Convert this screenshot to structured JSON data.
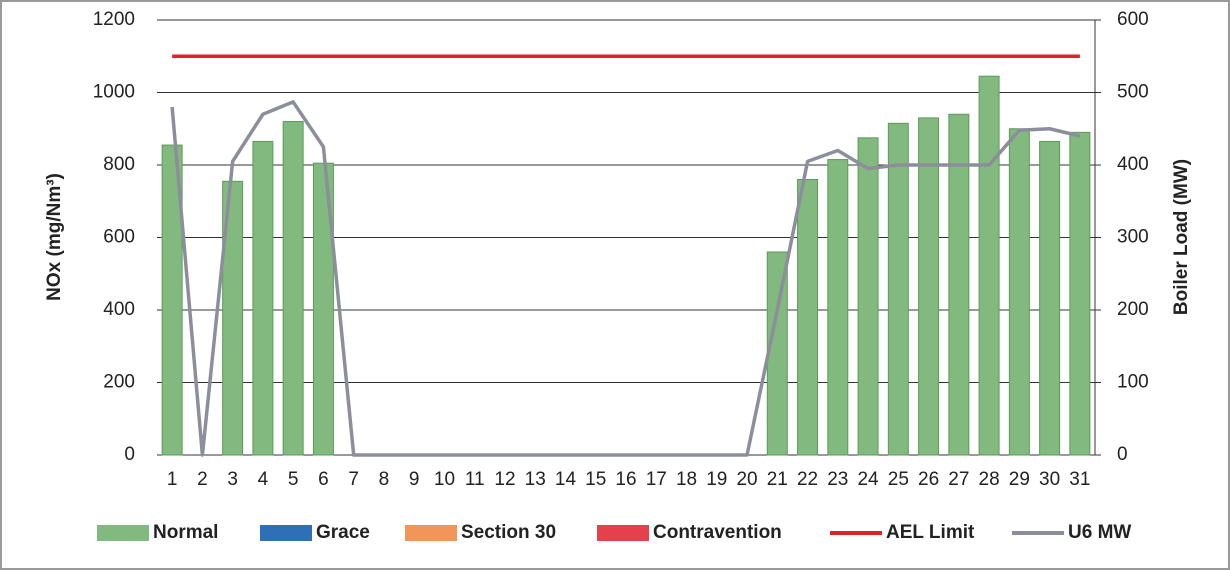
{
  "chart_data": {
    "type": "bar",
    "categories": [
      "1",
      "2",
      "3",
      "4",
      "5",
      "6",
      "7",
      "8",
      "9",
      "10",
      "11",
      "12",
      "13",
      "14",
      "15",
      "16",
      "17",
      "18",
      "19",
      "20",
      "21",
      "22",
      "23",
      "24",
      "25",
      "26",
      "27",
      "28",
      "29",
      "30",
      "31"
    ],
    "ylabel": "NOx (mg/Nm³)",
    "y2label": "Boiler Load (MW)",
    "ylim": [
      0,
      1200
    ],
    "yticks": [
      0,
      200,
      400,
      600,
      800,
      1000,
      1200
    ],
    "y2lim": [
      0,
      600
    ],
    "y2ticks": [
      0,
      100,
      200,
      300,
      400,
      500,
      600
    ],
    "grid": true,
    "legend": "bottom",
    "series": [
      {
        "name": "Normal",
        "type": "bar",
        "color": "#82b97f",
        "values": [
          855,
          null,
          755,
          865,
          920,
          805,
          null,
          null,
          null,
          null,
          null,
          null,
          null,
          null,
          null,
          null,
          null,
          null,
          null,
          null,
          560,
          760,
          815,
          875,
          915,
          930,
          940,
          1045,
          900,
          865,
          890
        ]
      },
      {
        "name": "Grace",
        "type": "bar",
        "color": "#2e6fb8",
        "values": [
          null,
          null,
          null,
          null,
          null,
          null,
          null,
          null,
          null,
          null,
          null,
          null,
          null,
          null,
          null,
          null,
          null,
          null,
          null,
          null,
          null,
          null,
          null,
          null,
          null,
          null,
          null,
          null,
          null,
          null,
          null
        ]
      },
      {
        "name": "Section 30",
        "type": "bar",
        "color": "#f2955a",
        "values": [
          null,
          null,
          null,
          null,
          null,
          null,
          null,
          null,
          null,
          null,
          null,
          null,
          null,
          null,
          null,
          null,
          null,
          null,
          null,
          null,
          null,
          null,
          null,
          null,
          null,
          null,
          null,
          null,
          null,
          null,
          null
        ]
      },
      {
        "name": "Contravention",
        "type": "bar",
        "color": "#e5414c",
        "values": [
          null,
          null,
          null,
          null,
          null,
          null,
          null,
          null,
          null,
          null,
          null,
          null,
          null,
          null,
          null,
          null,
          null,
          null,
          null,
          null,
          null,
          null,
          null,
          null,
          null,
          null,
          null,
          null,
          null,
          null,
          null
        ]
      },
      {
        "name": "AEL Limit",
        "type": "line",
        "color": "#e0202a",
        "values": [
          1100,
          1100,
          1100,
          1100,
          1100,
          1100,
          1100,
          1100,
          1100,
          1100,
          1100,
          1100,
          1100,
          1100,
          1100,
          1100,
          1100,
          1100,
          1100,
          1100,
          1100,
          1100,
          1100,
          1100,
          1100,
          1100,
          1100,
          1100,
          1100,
          1100,
          1100
        ]
      },
      {
        "name": "U6 MW",
        "type": "line",
        "axis": "y2",
        "color": "#8c8e9c",
        "values": [
          480,
          0,
          405,
          470,
          487,
          425,
          0,
          0,
          0,
          0,
          0,
          0,
          0,
          0,
          0,
          0,
          0,
          0,
          0,
          0,
          200,
          405,
          420,
          395,
          400,
          400,
          400,
          400,
          448,
          450,
          440
        ]
      }
    ]
  }
}
